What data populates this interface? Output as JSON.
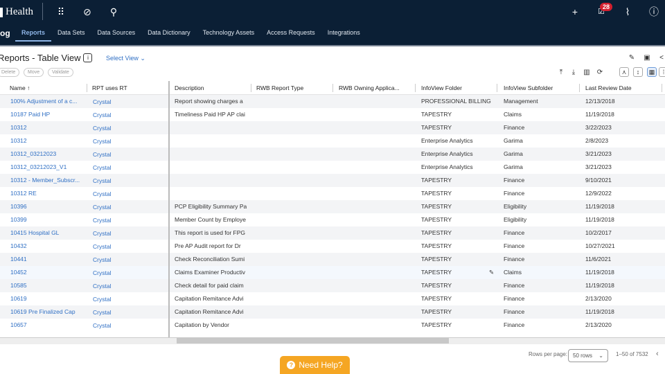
{
  "header": {
    "brand": "Health",
    "app_name": "og",
    "notification_count": "28",
    "icons": [
      "apps-grid-icon",
      "compass-icon",
      "search-icon",
      "plus-icon",
      "tasks-icon",
      "activity-icon",
      "help-icon"
    ]
  },
  "nav": {
    "tabs": [
      {
        "label": "Reports",
        "active": true
      },
      {
        "label": "Data Sets"
      },
      {
        "label": "Data Sources"
      },
      {
        "label": "Data Dictionary"
      },
      {
        "label": "Technology Assets"
      },
      {
        "label": "Access Requests"
      },
      {
        "label": "Integrations"
      }
    ]
  },
  "page": {
    "title": "Reports - Table View",
    "select_view": "Select View",
    "actions": {
      "delete": "Delete",
      "move": "Move",
      "validate": "Validate"
    }
  },
  "table": {
    "columns": [
      "Name",
      "RPT uses RT",
      "Description",
      "RWB Report Type",
      "RWB Owning Applica...",
      "InfoView Folder",
      "InfoView Subfolder",
      "Last Review Date"
    ],
    "sort_indicator": "↑",
    "rows": [
      [
        "100% Adjustment of a c...",
        "Crystal",
        "Report showing charges a",
        "",
        "",
        "PROFESSIONAL BILLING",
        "Management",
        "12/13/2018"
      ],
      [
        "10187 Paid HP",
        "Crystal",
        "Timeliness Paid HP AP clai",
        "",
        "",
        "TAPESTRY",
        "Claims",
        "11/19/2018"
      ],
      [
        "10312",
        "Crystal",
        "",
        "",
        "",
        "TAPESTRY",
        "Finance",
        "3/22/2023"
      ],
      [
        "10312",
        "Crystal",
        "",
        "",
        "",
        "Enterprise Analytics",
        "Garima",
        "2/8/2023"
      ],
      [
        "10312_03212023",
        "Crystal",
        "",
        "",
        "",
        "Enterprise Analytics",
        "Garima",
        "3/21/2023"
      ],
      [
        "10312_03212023_V1",
        "Crystal",
        "",
        "",
        "",
        "Enterprise Analytics",
        "Garima",
        "3/21/2023"
      ],
      [
        "10312 - Member_Subscr...",
        "Crystal",
        "",
        "",
        "",
        "TAPESTRY",
        "Finance",
        "9/10/2021"
      ],
      [
        "10312 RE",
        "Crystal",
        "",
        "",
        "",
        "TAPESTRY",
        "Finance",
        "12/9/2022"
      ],
      [
        "10396",
        "Crystal",
        "PCP Eligibility Summary Pa",
        "",
        "",
        "TAPESTRY",
        "Eligibility",
        "11/19/2018"
      ],
      [
        "10399",
        "Crystal",
        "Member Count by Employe",
        "",
        "",
        "TAPESTRY",
        "Eligibility",
        "11/19/2018"
      ],
      [
        "10415 Hospital GL",
        "Crystal",
        "This report is used for FPG",
        "",
        "",
        "TAPESTRY",
        "Finance",
        "10/2/2017"
      ],
      [
        "10432",
        "Crystal",
        "Pre AP Audit report for Dr",
        "",
        "",
        "TAPESTRY",
        "Finance",
        "10/27/2021"
      ],
      [
        "10441",
        "Crystal",
        "Check Reconciliation Sumi",
        "",
        "",
        "TAPESTRY",
        "Finance",
        "11/6/2021"
      ],
      [
        "10452",
        "Crystal",
        "Claims Examiner Productiv",
        "",
        "",
        "TAPESTRY",
        "Claims",
        "11/19/2018"
      ],
      [
        "10585",
        "Crystal",
        "Check detail for paid claim",
        "",
        "",
        "TAPESTRY",
        "Finance",
        "11/19/2018"
      ],
      [
        "10619",
        "Crystal",
        "Capitation Remitance Advi",
        "",
        "",
        "TAPESTRY",
        "Finance",
        "2/13/2020"
      ],
      [
        "10619 Pre Finalized Cap",
        "Crystal",
        "Capitation Remitance Advi",
        "",
        "",
        "TAPESTRY",
        "Finance",
        "11/19/2018"
      ],
      [
        "10657",
        "Crystal",
        "Capitation by Vendor",
        "",
        "",
        "TAPESTRY",
        "Finance",
        "2/13/2020"
      ]
    ]
  },
  "pagination": {
    "rows_per_page_label": "Rows per page:",
    "rows_per_page": "50 rows",
    "range": "1–50 of 7532"
  },
  "help": {
    "label": "Need Help?"
  },
  "colors": {
    "navbar": "#0b1f35",
    "link": "#2f6fc4",
    "help": "#f5a623",
    "badge": "#d3202f"
  }
}
